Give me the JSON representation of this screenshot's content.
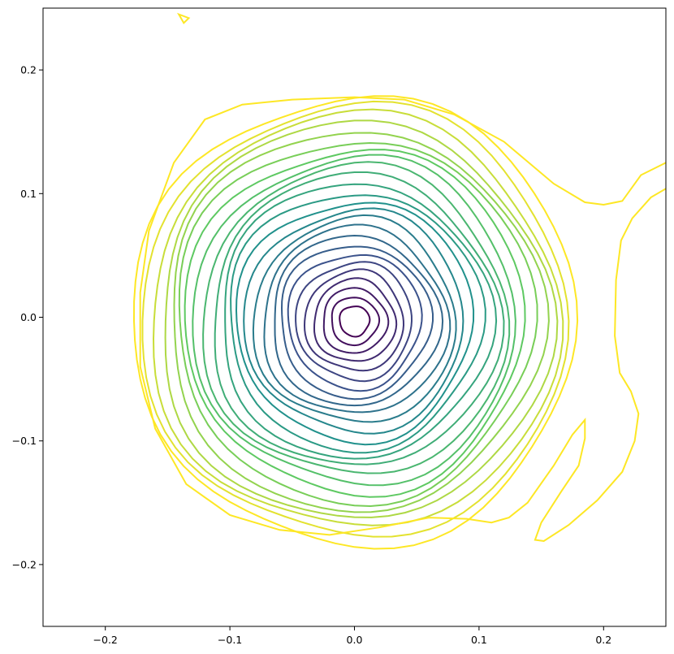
{
  "chart_data": {
    "type": "contour",
    "title": "",
    "xlabel": "",
    "ylabel": "",
    "xlim": [
      -0.25,
      0.25
    ],
    "ylim": [
      -0.25,
      0.25
    ],
    "grid": false,
    "legend": "none",
    "colormap": "viridis",
    "x_ticks": [
      {
        "value": -0.2,
        "label": "−0.2"
      },
      {
        "value": -0.1,
        "label": "−0.1"
      },
      {
        "value": 0.0,
        "label": "0.0"
      },
      {
        "value": 0.1,
        "label": "0.1"
      },
      {
        "value": 0.2,
        "label": "0.2"
      }
    ],
    "y_ticks": [
      {
        "value": 0.2,
        "label": "0.2"
      },
      {
        "value": 0.1,
        "label": "0.1"
      },
      {
        "value": 0.0,
        "label": "0.0"
      },
      {
        "value": -0.1,
        "label": "−0.1"
      },
      {
        "value": -0.2,
        "label": "−0.2"
      }
    ],
    "contour_center": [
      0.0,
      -0.003
    ],
    "contour_levels": 25,
    "contour_radius_min": 0.012,
    "contour_radius_max": 0.178,
    "extra_paths": [
      {
        "name": "top-left-blob",
        "color": "#fde725",
        "closed": true,
        "points": [
          [
            -0.141,
            0.245
          ],
          [
            -0.137,
            0.238
          ],
          [
            -0.133,
            0.242
          ],
          [
            -0.141,
            0.245
          ]
        ]
      },
      {
        "name": "right-outer-branch",
        "color": "#fde725",
        "closed": false,
        "points": [
          [
            0.25,
            0.104
          ],
          [
            0.238,
            0.097
          ],
          [
            0.223,
            0.08
          ],
          [
            0.214,
            0.062
          ],
          [
            0.21,
            0.03
          ],
          [
            0.209,
            -0.015
          ],
          [
            0.213,
            -0.045
          ],
          [
            0.222,
            -0.06
          ],
          [
            0.228,
            -0.078
          ],
          [
            0.225,
            -0.1
          ],
          [
            0.215,
            -0.125
          ],
          [
            0.195,
            -0.148
          ],
          [
            0.172,
            -0.168
          ],
          [
            0.152,
            -0.181
          ],
          [
            0.145,
            -0.18
          ],
          [
            0.15,
            -0.166
          ],
          [
            0.166,
            -0.141
          ],
          [
            0.18,
            -0.12
          ],
          [
            0.185,
            -0.098
          ],
          [
            0.185,
            -0.083
          ],
          [
            0.175,
            -0.095
          ],
          [
            0.16,
            -0.12
          ],
          [
            0.139,
            -0.15
          ],
          [
            0.124,
            -0.162
          ],
          [
            0.11,
            -0.166
          ],
          [
            0.09,
            -0.163
          ],
          [
            0.06,
            -0.162
          ],
          [
            0.02,
            -0.17
          ],
          [
            -0.02,
            -0.176
          ],
          [
            -0.06,
            -0.172
          ],
          [
            -0.1,
            -0.16
          ],
          [
            -0.135,
            -0.135
          ],
          [
            -0.16,
            -0.09
          ],
          [
            -0.172,
            -0.04
          ],
          [
            -0.172,
            0.02
          ],
          [
            -0.165,
            0.07
          ],
          [
            -0.145,
            0.125
          ],
          [
            -0.12,
            0.16
          ],
          [
            -0.09,
            0.172
          ],
          [
            -0.05,
            0.176
          ],
          [
            0.0,
            0.178
          ],
          [
            0.04,
            0.176
          ],
          [
            0.08,
            0.164
          ],
          [
            0.12,
            0.142
          ],
          [
            0.16,
            0.108
          ],
          [
            0.185,
            0.093
          ],
          [
            0.2,
            0.091
          ],
          [
            0.215,
            0.094
          ],
          [
            0.23,
            0.115
          ],
          [
            0.25,
            0.125
          ]
        ]
      }
    ]
  }
}
